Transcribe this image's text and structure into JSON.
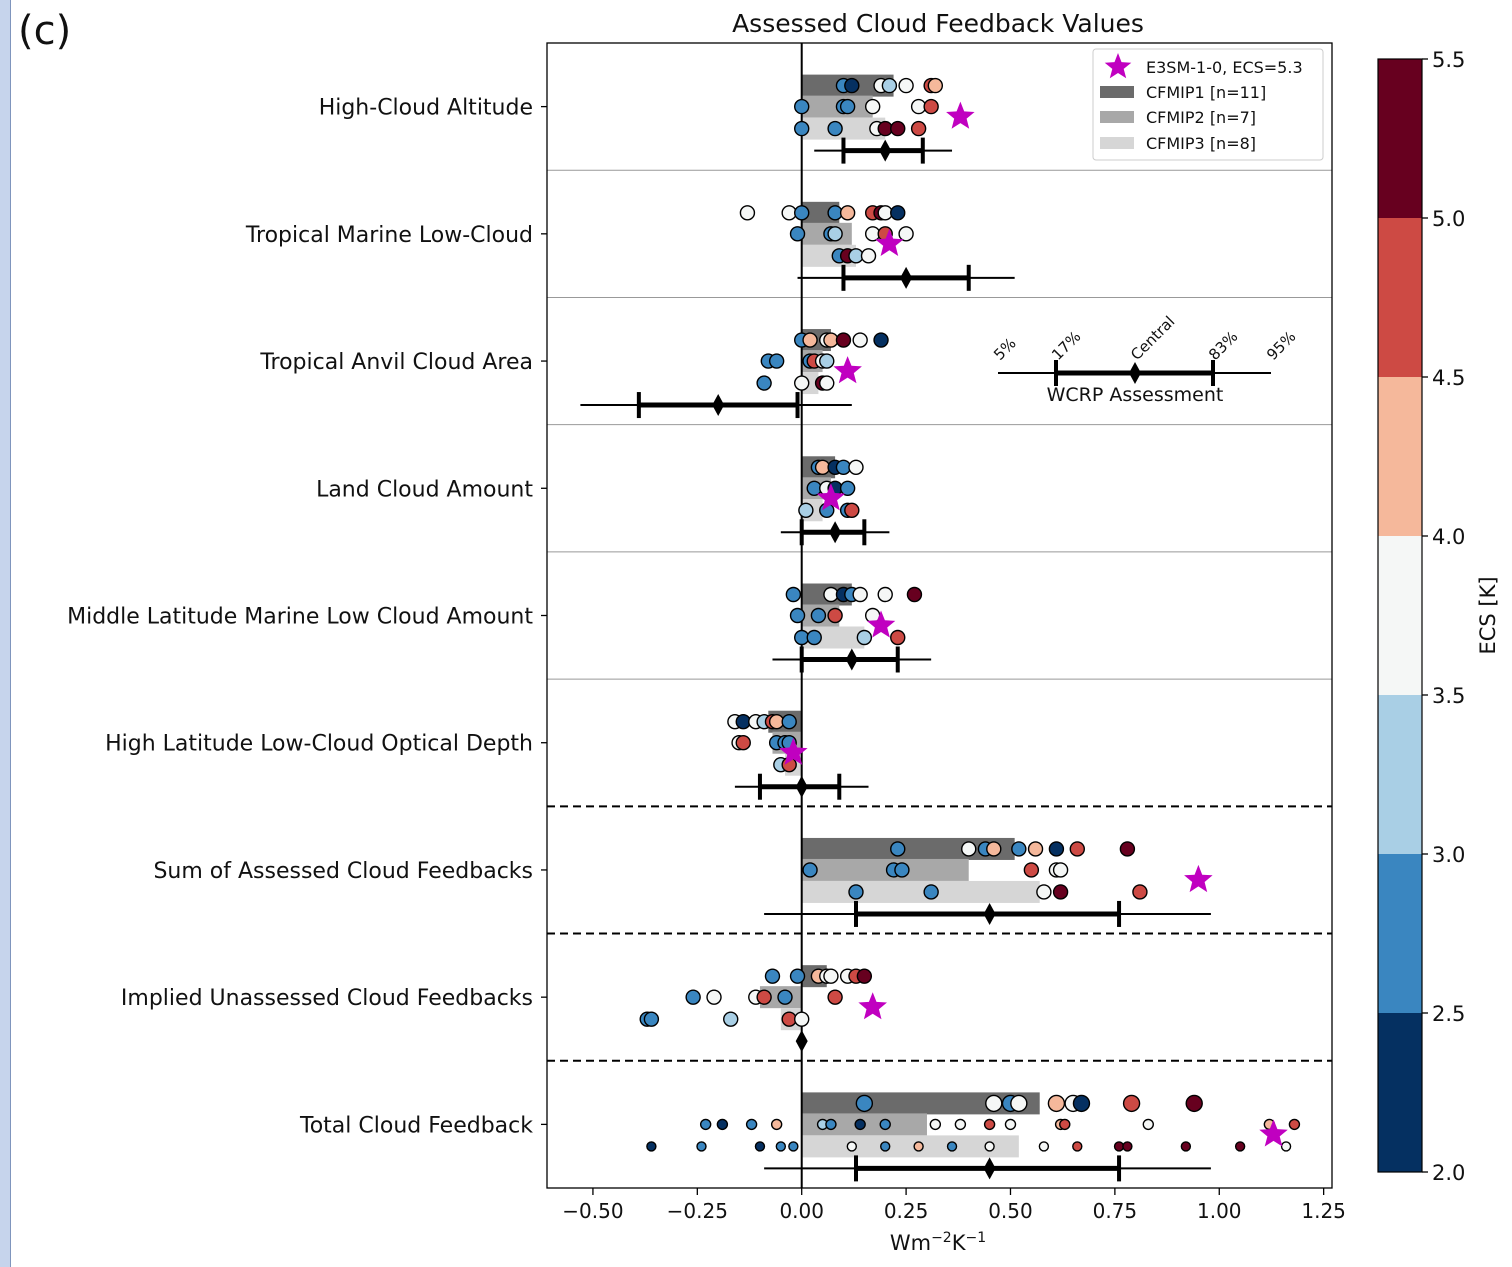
{
  "panel_label": "(c)",
  "chart_data": {
    "type": "scatter",
    "title": "Assessed Cloud Feedback Values",
    "xlabel": "Wm⁻²K⁻¹",
    "xlim": [
      -0.61,
      1.27
    ],
    "xticks": [
      -0.5,
      -0.25,
      0.0,
      0.25,
      0.5,
      0.75,
      1.0,
      1.25
    ],
    "xtick_labels": [
      "−0.50",
      "−0.25",
      "0.00",
      "0.25",
      "0.50",
      "0.75",
      "1.00",
      "1.25"
    ],
    "categories": [
      "High-Cloud Altitude",
      "Tropical Marine Low-Cloud",
      "Tropical Anvil Cloud Area",
      "Land Cloud Amount",
      "Middle Latitude Marine Low Cloud Amount",
      "High Latitude Low-Cloud Optical Depth",
      "Sum of Assessed Cloud Feedbacks",
      "Implied Unassessed Cloud Feedbacks",
      "Total Cloud Feedback"
    ],
    "group_separators": "solid lines between the first six categories; dashed lines before the last three",
    "legend": {
      "placement": "top-right",
      "entries": [
        "E3SM-1-0, ECS=5.3",
        "CFMIP1 [n=11]",
        "CFMIP2 [n=7]",
        "CFMIP3 [n=8]"
      ]
    },
    "series_colors": {
      "CFMIP1": "#6b6b6b",
      "CFMIP2": "#a8a8a8",
      "CFMIP3": "#d6d6d6",
      "E3SM": "#c000c0"
    },
    "bars": {
      "CFMIP1": [
        0.22,
        0.09,
        0.07,
        0.08,
        0.12,
        -0.08,
        0.51,
        0.06,
        0.57
      ],
      "CFMIP2": [
        0.17,
        0.12,
        0.05,
        0.07,
        0.09,
        -0.07,
        0.4,
        -0.1,
        0.3
      ],
      "CFMIP3": [
        0.2,
        0.13,
        0.04,
        0.05,
        0.15,
        -0.04,
        0.57,
        -0.05,
        0.52
      ]
    },
    "e3sm_star": [
      0.38,
      0.21,
      0.11,
      0.07,
      0.19,
      -0.02,
      0.95,
      0.17,
      1.13
    ],
    "wcrp_assessment": {
      "legend_labels": [
        "5%",
        "17%",
        "Central",
        "83%",
        "95%"
      ],
      "legend_title": "WCRP Assessment",
      "intervals": [
        {
          "p5": 0.03,
          "p17": 0.1,
          "central": 0.2,
          "p83": 0.29,
          "p95": 0.36
        },
        {
          "p5": -0.01,
          "p17": 0.1,
          "central": 0.25,
          "p83": 0.4,
          "p95": 0.51
        },
        {
          "p5": -0.53,
          "p17": -0.39,
          "central": -0.2,
          "p83": -0.01,
          "p95": 0.12
        },
        {
          "p5": -0.05,
          "p17": 0.0,
          "central": 0.08,
          "p83": 0.15,
          "p95": 0.21
        },
        {
          "p5": -0.07,
          "p17": 0.0,
          "central": 0.12,
          "p83": 0.23,
          "p95": 0.31
        },
        {
          "p5": -0.16,
          "p17": -0.1,
          "central": 0.0,
          "p83": 0.09,
          "p95": 0.16
        },
        {
          "p5": -0.09,
          "p17": 0.13,
          "central": 0.45,
          "p83": 0.76,
          "p95": 0.98
        },
        {
          "central": 0.0
        },
        {
          "p5": -0.09,
          "p17": 0.13,
          "central": 0.45,
          "p83": 0.76,
          "p95": 0.98
        }
      ]
    },
    "model_points": [
      [
        [
          [
            0.1,
            2.6
          ],
          [
            0.12,
            2.2
          ],
          [
            0.19,
            3.8
          ],
          [
            0.21,
            3.2
          ],
          [
            0.25,
            3.7
          ],
          [
            0.31,
            4.7
          ],
          [
            0.32,
            4.3
          ]
        ],
        [
          [
            0.0,
            2.7
          ],
          [
            0.1,
            2.6
          ],
          [
            0.11,
            2.8
          ],
          [
            0.17,
            3.8
          ],
          [
            0.28,
            3.6
          ],
          [
            0.31,
            4.8
          ]
        ],
        [
          [
            0.0,
            2.7
          ],
          [
            0.08,
            2.6
          ],
          [
            0.18,
            3.6
          ],
          [
            0.2,
            5.2
          ],
          [
            0.23,
            5.1
          ],
          [
            0.28,
            4.8
          ]
        ]
      ],
      [
        [
          [
            -0.13,
            3.7
          ],
          [
            -0.03,
            3.7
          ],
          [
            0.0,
            2.7
          ],
          [
            0.08,
            2.8
          ],
          [
            0.11,
            4.2
          ],
          [
            0.17,
            4.9
          ],
          [
            0.19,
            5.2
          ],
          [
            0.2,
            3.7
          ],
          [
            0.23,
            2.2
          ]
        ],
        [
          [
            -0.01,
            2.7
          ],
          [
            0.07,
            2.6
          ],
          [
            0.08,
            3.0
          ],
          [
            0.17,
            3.7
          ],
          [
            0.2,
            4.8
          ],
          [
            0.25,
            3.6
          ]
        ],
        [
          [
            0.09,
            2.7
          ],
          [
            0.11,
            5.2
          ],
          [
            0.13,
            3.2
          ],
          [
            0.16,
            3.7
          ]
        ]
      ],
      [
        [
          [
            0.0,
            2.8
          ],
          [
            0.02,
            4.2
          ],
          [
            0.06,
            3.7
          ],
          [
            0.07,
            4.1
          ],
          [
            0.1,
            5.2
          ],
          [
            0.14,
            3.6
          ],
          [
            0.19,
            2.2
          ]
        ],
        [
          [
            -0.08,
            2.6
          ],
          [
            -0.06,
            2.7
          ],
          [
            0.02,
            2.7
          ],
          [
            0.03,
            4.8
          ],
          [
            0.05,
            3.6
          ],
          [
            0.06,
            3.3
          ]
        ],
        [
          [
            -0.09,
            2.7
          ],
          [
            0.0,
            3.7
          ],
          [
            0.05,
            5.2
          ],
          [
            0.06,
            3.7
          ]
        ]
      ],
      [
        [
          [
            0.04,
            2.7
          ],
          [
            0.05,
            4.2
          ],
          [
            0.08,
            2.3
          ],
          [
            0.1,
            2.8
          ],
          [
            0.13,
            3.7
          ]
        ],
        [
          [
            0.03,
            2.6
          ],
          [
            0.06,
            3.7
          ],
          [
            0.08,
            2.4
          ],
          [
            0.11,
            2.7
          ]
        ],
        [
          [
            0.01,
            3.2
          ],
          [
            0.06,
            2.7
          ],
          [
            0.11,
            2.8
          ],
          [
            0.12,
            4.6
          ]
        ]
      ],
      [
        [
          [
            -0.02,
            2.7
          ],
          [
            0.07,
            3.7
          ],
          [
            0.1,
            2.2
          ],
          [
            0.12,
            2.7
          ],
          [
            0.14,
            3.7
          ],
          [
            0.2,
            3.7
          ],
          [
            0.27,
            5.2
          ]
        ],
        [
          [
            -0.01,
            2.7
          ],
          [
            0.04,
            2.7
          ],
          [
            0.08,
            4.8
          ],
          [
            0.17,
            3.7
          ]
        ],
        [
          [
            0.0,
            2.7
          ],
          [
            0.03,
            2.7
          ],
          [
            0.15,
            3.2
          ],
          [
            0.23,
            4.8
          ]
        ]
      ],
      [
        [
          [
            -0.16,
            3.7
          ],
          [
            -0.14,
            2.3
          ],
          [
            -0.11,
            3.7
          ],
          [
            -0.09,
            3.3
          ],
          [
            -0.07,
            4.8
          ],
          [
            -0.06,
            4.2
          ],
          [
            -0.03,
            2.7
          ]
        ],
        [
          [
            -0.15,
            3.7
          ],
          [
            -0.14,
            4.8
          ],
          [
            -0.06,
            2.7
          ],
          [
            -0.04,
            2.7
          ],
          [
            -0.03,
            2.8
          ]
        ],
        [
          [
            -0.05,
            3.2
          ],
          [
            -0.03,
            4.6
          ]
        ]
      ],
      [
        [
          [
            0.23,
            2.7
          ],
          [
            0.4,
            3.7
          ],
          [
            0.44,
            2.7
          ],
          [
            0.46,
            4.3
          ],
          [
            0.52,
            2.7
          ],
          [
            0.56,
            4.3
          ],
          [
            0.61,
            2.3
          ],
          [
            0.66,
            4.8
          ],
          [
            0.78,
            5.2
          ]
        ],
        [
          [
            0.02,
            2.7
          ],
          [
            0.22,
            2.7
          ],
          [
            0.24,
            2.7
          ],
          [
            0.55,
            4.8
          ],
          [
            0.61,
            3.7
          ],
          [
            0.62,
            3.7
          ]
        ],
        [
          [
            0.13,
            2.7
          ],
          [
            0.31,
            2.7
          ],
          [
            0.58,
            3.7
          ],
          [
            0.62,
            5.2
          ],
          [
            0.81,
            4.8
          ]
        ]
      ],
      [
        [
          [
            -0.07,
            2.7
          ],
          [
            -0.01,
            2.7
          ],
          [
            0.04,
            4.2
          ],
          [
            0.06,
            3.7
          ],
          [
            0.07,
            3.7
          ],
          [
            0.11,
            3.7
          ],
          [
            0.13,
            4.8
          ],
          [
            0.15,
            5.2
          ]
        ],
        [
          [
            -0.26,
            2.7
          ],
          [
            -0.21,
            3.7
          ],
          [
            -0.11,
            3.7
          ],
          [
            -0.09,
            4.8
          ],
          [
            -0.04,
            2.7
          ],
          [
            0.08,
            4.8
          ]
        ],
        [
          [
            -0.37,
            2.7
          ],
          [
            -0.36,
            2.7
          ],
          [
            -0.17,
            3.2
          ],
          [
            -0.03,
            4.8
          ],
          [
            0.0,
            3.7
          ]
        ]
      ],
      [
        [
          [
            0.15,
            2.7
          ],
          [
            0.46,
            3.7
          ],
          [
            0.5,
            2.7
          ],
          [
            0.52,
            3.7
          ],
          [
            0.61,
            4.3
          ],
          [
            0.65,
            3.7
          ],
          [
            0.67,
            2.2
          ],
          [
            0.79,
            4.8
          ],
          [
            0.94,
            5.2
          ]
        ],
        [
          [
            -0.23,
            2.7
          ],
          [
            -0.19,
            2.2
          ],
          [
            -0.12,
            2.7
          ],
          [
            -0.06,
            4.2
          ],
          [
            0.05,
            3.3
          ],
          [
            0.07,
            2.7
          ],
          [
            0.14,
            2.3
          ],
          [
            0.2,
            2.7
          ],
          [
            0.32,
            3.7
          ],
          [
            0.38,
            3.7
          ],
          [
            0.45,
            4.8
          ],
          [
            0.5,
            3.7
          ],
          [
            0.62,
            4.3
          ],
          [
            0.63,
            4.9
          ],
          [
            0.83,
            3.7
          ],
          [
            1.12,
            4.3
          ],
          [
            1.18,
            4.5
          ]
        ],
        [
          [
            -0.36,
            2.2
          ],
          [
            -0.24,
            2.7
          ],
          [
            -0.1,
            2.3
          ],
          [
            -0.05,
            2.7
          ],
          [
            -0.02,
            2.8
          ],
          [
            0.12,
            3.5
          ],
          [
            0.2,
            2.7
          ],
          [
            0.28,
            4.3
          ],
          [
            0.36,
            2.7
          ],
          [
            0.45,
            3.7
          ],
          [
            0.58,
            3.7
          ],
          [
            0.66,
            4.8
          ],
          [
            0.76,
            5.2
          ],
          [
            0.78,
            5.1
          ],
          [
            0.92,
            5.0
          ],
          [
            1.05,
            5.2
          ],
          [
            1.16,
            3.7
          ]
        ]
      ]
    ],
    "colorbar": {
      "label": "ECS [K]",
      "ticks": [
        2.0,
        2.5,
        3.0,
        3.5,
        4.0,
        4.5,
        5.0,
        5.5
      ],
      "tick_labels": [
        "2.0",
        "2.5",
        "3.0",
        "3.5",
        "4.0",
        "4.5",
        "5.0",
        "5.5"
      ],
      "bins": [
        {
          "lo": 2.0,
          "hi": 2.5,
          "color": "#053061"
        },
        {
          "lo": 2.5,
          "hi": 3.0,
          "color": "#3a86c0"
        },
        {
          "lo": 3.0,
          "hi": 3.5,
          "color": "#a9cfe5"
        },
        {
          "lo": 3.5,
          "hi": 4.0,
          "color": "#f5f7f6"
        },
        {
          "lo": 4.0,
          "hi": 4.5,
          "color": "#f5b89b"
        },
        {
          "lo": 4.5,
          "hi": 5.0,
          "color": "#cd4a44"
        },
        {
          "lo": 5.0,
          "hi": 5.5,
          "color": "#67001f"
        }
      ]
    }
  }
}
